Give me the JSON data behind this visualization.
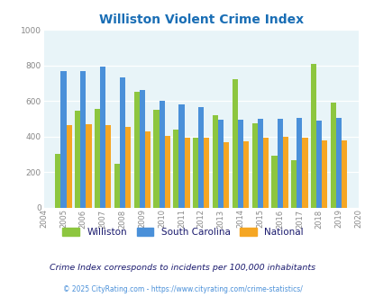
{
  "title": "Williston Violent Crime Index",
  "years": [
    2004,
    2005,
    2006,
    2007,
    2008,
    2009,
    2010,
    2011,
    2012,
    2013,
    2014,
    2015,
    2016,
    2017,
    2018,
    2019,
    2020
  ],
  "williston": [
    null,
    305,
    545,
    555,
    250,
    650,
    550,
    440,
    395,
    520,
    720,
    475,
    295,
    270,
    810,
    590,
    null
  ],
  "south_carolina": [
    null,
    770,
    770,
    795,
    730,
    660,
    600,
    580,
    565,
    495,
    495,
    500,
    500,
    505,
    490,
    505,
    null
  ],
  "national": [
    null,
    465,
    470,
    465,
    455,
    430,
    405,
    395,
    395,
    370,
    375,
    395,
    400,
    395,
    380,
    380,
    null
  ],
  "bar_colors": {
    "williston": "#8dc63f",
    "south_carolina": "#4a90d9",
    "national": "#f5a623"
  },
  "ylim": [
    0,
    1000
  ],
  "yticks": [
    0,
    200,
    400,
    600,
    800,
    1000
  ],
  "bg_color": "#e8f4f8",
  "title_color": "#1a6eb5",
  "footer_text": "Crime Index corresponds to incidents per 100,000 inhabitants",
  "copyright_text": "© 2025 CityRating.com - https://www.cityrating.com/crime-statistics/",
  "legend_labels": [
    "Williston",
    "South Carolina",
    "National"
  ],
  "legend_text_color": "#1a1a6e",
  "footer_color": "#1a1a6e",
  "copyright_color": "#4a90d9"
}
